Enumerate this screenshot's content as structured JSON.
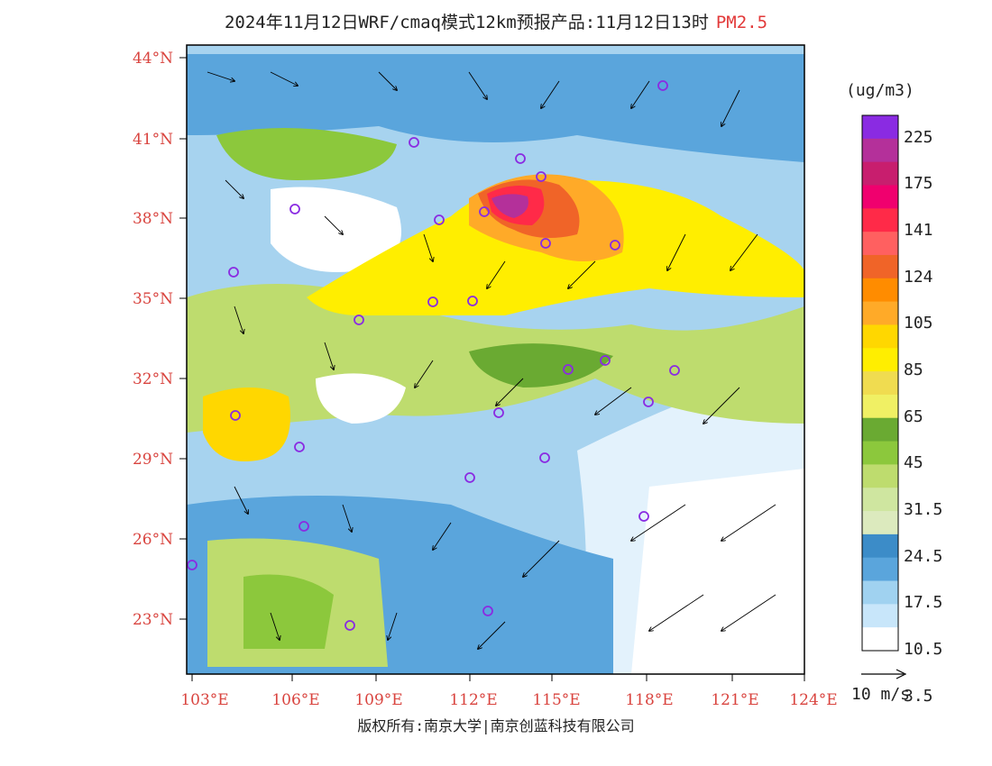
{
  "title": {
    "main": "2024年11月12日WRF/cmaq模式12km预报产品:11月12日13时",
    "species": "PM2.5"
  },
  "map": {
    "lat_labels": [
      "44°N",
      "41°N",
      "38°N",
      "35°N",
      "32°N",
      "29°N",
      "26°N",
      "23°N"
    ],
    "lon_labels": [
      "103°E",
      "106°E",
      "109°E",
      "112°E",
      "115°E",
      "118°E",
      "121°E",
      "124°E"
    ],
    "label_color": "#d9443f"
  },
  "colorbar": {
    "unit": "(ug/m3)",
    "labels": [
      "225",
      "175",
      "141",
      "124",
      "105",
      "85",
      "65",
      "45",
      "31.5",
      "24.5",
      "17.5",
      "10.5",
      "3.5"
    ],
    "colors": [
      "#8a2be2",
      "#b4309a",
      "#c81e6e",
      "#f0006e",
      "#ff2a48",
      "#ff6060",
      "#f06428",
      "#ff8c00",
      "#ffaa28",
      "#ffd700",
      "#ffee00",
      "#f0dc50",
      "#f0f064",
      "#6aaa32",
      "#8cc83c",
      "#bedc6e",
      "#cfe6a0",
      "#dceabe",
      "#3c8cc8",
      "#5aa5dc",
      "#a0d2f0",
      "#c8e6fa",
      "#ffffff"
    ]
  },
  "wind_key": {
    "label": "10 m/s"
  },
  "footer": {
    "copyright": "版权所有:南京大学|南京创蓝科技有限公司"
  }
}
